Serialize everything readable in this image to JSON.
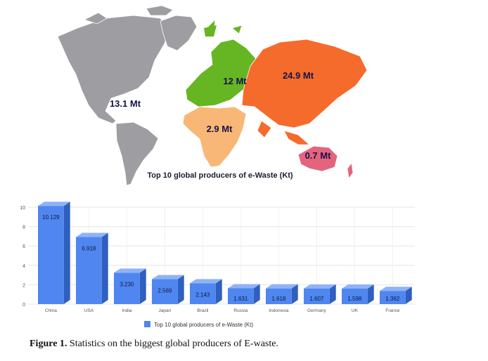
{
  "map": {
    "title": "Top 10 global producers of e-Waste (Kt)",
    "regions": [
      {
        "name": "Americas",
        "value_mt": 13.1,
        "label": "13.1 Mt",
        "color": "#9e9ea2"
      },
      {
        "name": "Europe",
        "value_mt": 12,
        "label": "12 Mt",
        "color": "#66b523"
      },
      {
        "name": "Asia",
        "value_mt": 24.9,
        "label": "24.9 Mt",
        "color": "#f56b2c"
      },
      {
        "name": "Africa",
        "value_mt": 2.9,
        "label": "2.9 Mt",
        "color": "#f8b777"
      },
      {
        "name": "Oceania",
        "value_mt": 0.7,
        "label": "0.7 Mt",
        "color": "#e5647d"
      }
    ]
  },
  "chart_data": {
    "type": "bar",
    "title": "",
    "xlabel": "",
    "ylabel": "",
    "categories": [
      "China",
      "USA",
      "India",
      "Japan",
      "Brazil",
      "Russia",
      "Indonesia",
      "Germany",
      "UK",
      "France"
    ],
    "values": [
      10.129,
      6.918,
      3.23,
      2.569,
      2.143,
      1.631,
      1.618,
      1.607,
      1.598,
      1.362
    ],
    "value_labels": [
      "10.129",
      "6.918",
      "3.230",
      "2.569",
      "2.143",
      "1.631",
      "1.618",
      "1.607",
      "1.598",
      "1.362"
    ],
    "series": [
      {
        "name": "Top 10 global producers of e-Waste (Kt)",
        "values": [
          10.129,
          6.918,
          3.23,
          2.569,
          2.143,
          1.631,
          1.618,
          1.607,
          1.598,
          1.362
        ]
      }
    ],
    "ylim": [
      0,
      10
    ],
    "yticks": [
      "0",
      "2",
      "4",
      "6",
      "8",
      "10"
    ],
    "grid": true,
    "legend_position": "bottom",
    "colors": {
      "bar_front": "#4f86ef",
      "bar_side": "#2f5fbf",
      "bar_top": "#8fb3f7",
      "label_text": "#0b1a3d"
    }
  },
  "figure": {
    "caption_label": "Figure 1.",
    "caption_text": "Statistics on the biggest global producers of E-waste."
  }
}
